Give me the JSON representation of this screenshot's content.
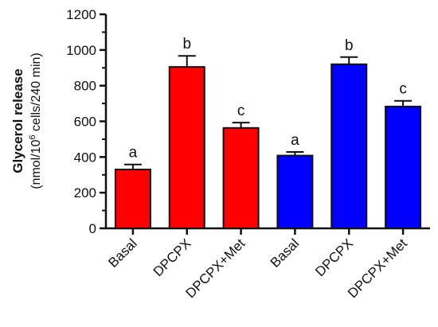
{
  "chart_data": {
    "type": "bar",
    "ylabel": "Glycerol release",
    "ylabel_unit": {
      "prefix": "(nmol/10",
      "superscript": "6",
      "suffix": " cells/240 min)"
    },
    "ylim": [
      0,
      1200
    ],
    "yticks": [
      0,
      200,
      400,
      600,
      800,
      1000,
      1200
    ],
    "grid": false,
    "categories": [
      "Basal",
      "DPCPX",
      "DPCPX+Met",
      "Basal",
      "DPCPX",
      "DPCPX+Met"
    ],
    "values": [
      330,
      905,
      563,
      408,
      920,
      683
    ],
    "errors": [
      28,
      62,
      30,
      20,
      40,
      32
    ],
    "significance": [
      "a",
      "b",
      "c",
      "a",
      "b",
      "c"
    ],
    "colors": [
      "#ff0000",
      "#ff0000",
      "#ff0000",
      "#0000ff",
      "#0000ff",
      "#0000ff"
    ]
  }
}
